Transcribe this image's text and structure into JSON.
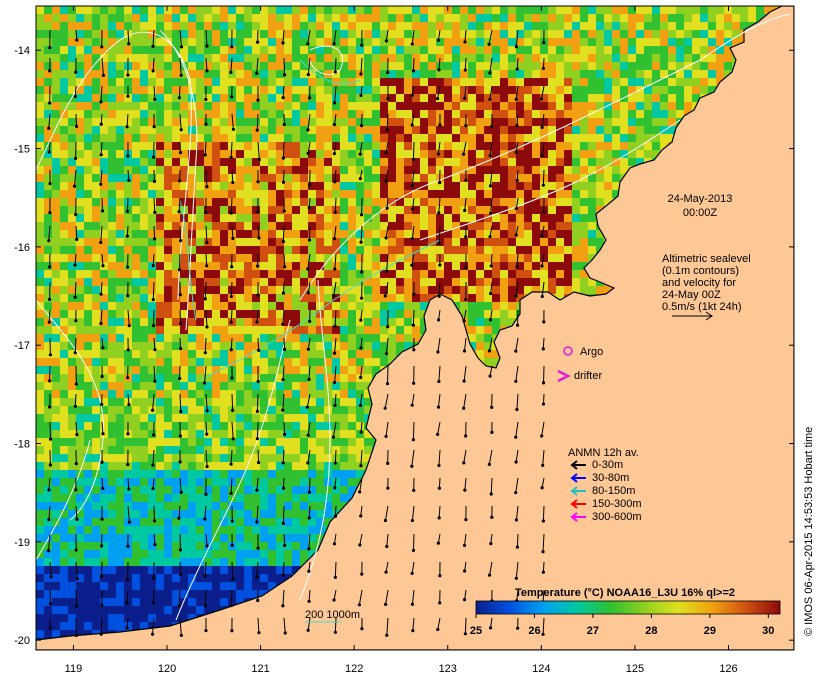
{
  "map": {
    "lon_min": 118.6,
    "lon_max": 126.7,
    "lat_min": -20.1,
    "lat_max": -13.55,
    "x_ticks": [
      "119",
      "120",
      "121",
      "122",
      "123",
      "124",
      "125",
      "126"
    ],
    "y_ticks": [
      "-14",
      "-15",
      "-16",
      "-17",
      "-18",
      "-19",
      "-20"
    ],
    "land_color": "#FDC896",
    "ocean_deep_color": "#0A1F8C",
    "contour_color": "#FFFFFF",
    "isobath_color": "#40E0D0"
  },
  "date": {
    "line1": "24-May-2013",
    "line2": "00:00Z"
  },
  "altimetry_note": {
    "lines": [
      "Altimetric sealevel",
      "(0.1m contours)",
      "and velocity for",
      "24-May 00Z",
      "0.5m/s (1kt 24h)"
    ]
  },
  "symbols": {
    "argo_label": "Argo",
    "drifter_label": "drifter",
    "argo_color": "#E020E0",
    "drifter_color": "#E020E0"
  },
  "anmn_legend": {
    "title": "ANMN 12h av.",
    "items": [
      {
        "label": "0-30m",
        "color": "#000000"
      },
      {
        "label": "30-80m",
        "color": "#0000FF"
      },
      {
        "label": "80-150m",
        "color": "#20C0C0"
      },
      {
        "label": "150-300m",
        "color": "#FF0000"
      },
      {
        "label": "300-600m",
        "color": "#FF00FF"
      }
    ]
  },
  "isobath_label": "200  1000m",
  "colorbar": {
    "title": "Temperature (°C) NOAA16_L3U 16% ql>=2",
    "ticks": [
      "25",
      "26",
      "27",
      "28",
      "29",
      "30"
    ],
    "min": 25,
    "max": 30.2,
    "colors": [
      "#0A1F8C",
      "#0050E0",
      "#00A0F0",
      "#00C8A0",
      "#30C030",
      "#90D020",
      "#E0E020",
      "#F0A010",
      "#D05010",
      "#8C0A0A"
    ]
  },
  "credit": "© IMOS 06-Apr-2015 14:53:53 Hobart time"
}
